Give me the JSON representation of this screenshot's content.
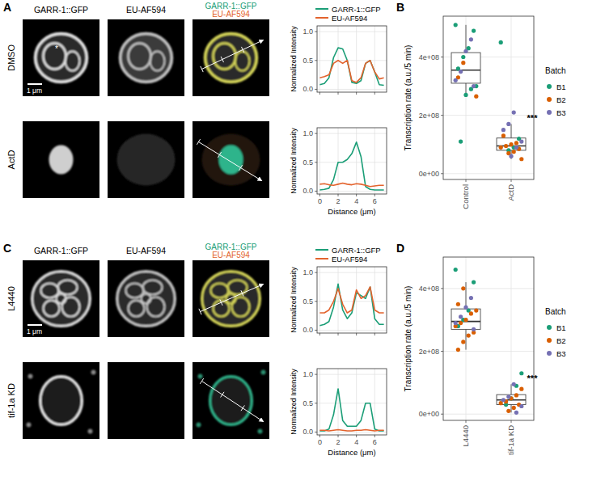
{
  "figure": {
    "panels": [
      "A",
      "B",
      "C",
      "D"
    ],
    "image_panels": [
      {
        "columns": [
          "GARR-1::GFP",
          "EU-AF594"
        ],
        "merge_labels": [
          "GARR-1::GFP",
          "EU-AF594"
        ],
        "rows": [
          "DMSO",
          "ActD"
        ],
        "scale_bar": "1 μm",
        "asterisk": "*"
      },
      {
        "columns": [
          "GARR-1::GFP",
          "EU-AF594"
        ],
        "merge_labels": [
          "GARR-1::GFP",
          "EU-AF594"
        ],
        "rows": [
          "L4440",
          "tif-1a KD"
        ],
        "scale_bar": "1 μm"
      }
    ]
  },
  "chart_data": [
    {
      "type": "line",
      "ylabel": "Normalized Intensity",
      "x": [
        0,
        0.5,
        1,
        1.5,
        2,
        2.5,
        3,
        3.5,
        4,
        4.5,
        5,
        5.5,
        6,
        6.5,
        7
      ],
      "series": [
        {
          "name": "GARR-1::GFP",
          "color": "#1b9e77",
          "values": [
            0.08,
            0.1,
            0.2,
            0.55,
            0.72,
            0.7,
            0.5,
            0.12,
            0.1,
            0.15,
            0.45,
            0.5,
            0.3,
            0.08,
            0.07
          ]
        },
        {
          "name": "EU-AF594",
          "color": "#e3632d",
          "values": [
            0.2,
            0.22,
            0.25,
            0.45,
            0.5,
            0.45,
            0.5,
            0.15,
            0.12,
            0.2,
            0.45,
            0.5,
            0.3,
            0.18,
            0.2
          ]
        }
      ],
      "xlim": [
        -0.3,
        7.3
      ],
      "ylim": [
        -0.05,
        1.1
      ],
      "xticks": [
        0,
        2,
        4,
        6
      ],
      "yticks": [
        {
          "value": 0,
          "label": "0.0"
        },
        {
          "value": 0.5,
          "label": "0.5"
        },
        {
          "value": 1,
          "label": "1.0"
        }
      ],
      "grid": true,
      "legend": "top",
      "tick_labels": "y"
    },
    {
      "type": "line",
      "xlabel": "Distance (μm)",
      "ylabel": "Normalized Intensity",
      "x": [
        0,
        0.5,
        1,
        1.5,
        2,
        2.5,
        3,
        3.5,
        4,
        4.5,
        5,
        5.5,
        6,
        6.5,
        7
      ],
      "series": [
        {
          "name": "GARR-1::GFP",
          "color": "#1b9e77",
          "values": [
            0.02,
            0.03,
            0.05,
            0.2,
            0.5,
            0.5,
            0.55,
            0.65,
            0.85,
            0.6,
            0.08,
            0.03,
            0.02,
            0.02,
            0.02
          ]
        },
        {
          "name": "EU-AF594",
          "color": "#e3632d",
          "values": [
            0.12,
            0.13,
            0.11,
            0.1,
            0.12,
            0.14,
            0.12,
            0.11,
            0.13,
            0.12,
            0.1,
            0.08,
            0.09,
            0.1,
            0.1
          ]
        }
      ],
      "xlim": [
        -0.3,
        7.3
      ],
      "ylim": [
        -0.05,
        1.1
      ],
      "xticks": [
        0,
        2,
        4,
        6
      ],
      "yticks": [
        {
          "value": 0,
          "label": "0.0"
        },
        {
          "value": 0.5,
          "label": "0.5"
        },
        {
          "value": 1,
          "label": "1.0"
        }
      ],
      "grid": true
    },
    {
      "type": "box",
      "ylabel": "Transcription rate (a.u./5 min)",
      "categories": [
        "Control",
        "ActD"
      ],
      "boxes": [
        {
          "min": 265000000,
          "q1": 310000000,
          "median": 355000000,
          "q3": 415000000,
          "max": 510000000
        },
        {
          "min": 50000000,
          "q1": 80000000,
          "median": 95000000,
          "q3": 122000000,
          "max": 170000000
        }
      ],
      "series": [
        {
          "name": "B1",
          "color": "#1b9e77",
          "x": [
            "Control",
            "Control",
            "Control",
            "Control",
            "Control",
            "Control",
            "Control",
            "Control",
            "Control",
            "ActD",
            "ActD",
            "ActD",
            "ActD"
          ],
          "values": [
            510000000,
            490000000,
            430000000,
            400000000,
            360000000,
            300000000,
            290000000,
            270000000,
            110000000,
            450000000,
            120000000,
            90000000,
            80000000
          ]
        },
        {
          "name": "B2",
          "color": "#d95f02",
          "x": [
            "Control",
            "Control",
            "Control",
            "ActD",
            "ActD",
            "ActD",
            "ActD",
            "ActD",
            "ActD",
            "ActD",
            "ActD",
            "ActD"
          ],
          "values": [
            380000000,
            330000000,
            265000000,
            105000000,
            100000000,
            95000000,
            90000000,
            85000000,
            75000000,
            70000000,
            130000000,
            50000000
          ]
        },
        {
          "name": "B3",
          "color": "#7570b3",
          "x": [
            "Control",
            "Control",
            "Control",
            "Control",
            "Control",
            "ActD",
            "ActD",
            "ActD",
            "ActD",
            "ActD",
            "ActD"
          ],
          "values": [
            460000000,
            420000000,
            350000000,
            320000000,
            300000000,
            210000000,
            170000000,
            150000000,
            110000000,
            90000000,
            60000000
          ]
        }
      ],
      "legend_title": "Batch",
      "legend": "right",
      "ylim": [
        -20000000,
        540000000
      ],
      "yticks": [
        {
          "value": 0,
          "label": "0e+00"
        },
        {
          "value": 200000000,
          "label": "2e+08"
        },
        {
          "value": 400000000,
          "label": "4e+08"
        }
      ],
      "grid": true,
      "annotations": [
        {
          "text": "***",
          "category": "ActD"
        }
      ]
    },
    {
      "type": "line",
      "ylabel": "Normalized Intensity",
      "x": [
        0,
        0.5,
        1,
        1.5,
        2,
        2.5,
        3,
        3.5,
        4,
        4.5,
        5,
        5.5,
        6,
        6.5,
        7
      ],
      "series": [
        {
          "name": "GARR-1::GFP",
          "color": "#1b9e77",
          "values": [
            0.08,
            0.1,
            0.15,
            0.4,
            0.8,
            0.35,
            0.2,
            0.3,
            0.65,
            0.6,
            0.55,
            0.75,
            0.2,
            0.1,
            0.1
          ]
        },
        {
          "name": "EU-AF594",
          "color": "#e3632d",
          "values": [
            0.3,
            0.3,
            0.35,
            0.5,
            0.72,
            0.45,
            0.3,
            0.35,
            0.7,
            0.55,
            0.6,
            0.75,
            0.35,
            0.3,
            0.3
          ]
        }
      ],
      "xlim": [
        -0.3,
        7.3
      ],
      "ylim": [
        -0.05,
        1.1
      ],
      "xticks": [
        0,
        2,
        4,
        6
      ],
      "yticks": [
        {
          "value": 0,
          "label": "0.0"
        },
        {
          "value": 0.5,
          "label": "0.5"
        },
        {
          "value": 1,
          "label": "1.0"
        }
      ],
      "grid": true,
      "legend": "top",
      "tick_labels": "y"
    },
    {
      "type": "line",
      "xlabel": "Distance (μm)",
      "ylabel": "Normalized Intensity",
      "x": [
        0,
        0.5,
        1,
        1.5,
        2,
        2.5,
        3,
        3.5,
        4,
        4.5,
        5,
        5.5,
        6,
        6.5,
        7
      ],
      "series": [
        {
          "name": "GARR-1::GFP",
          "color": "#1b9e77",
          "values": [
            0.02,
            0.02,
            0.05,
            0.3,
            0.75,
            0.2,
            0.1,
            0.1,
            0.1,
            0.2,
            0.5,
            0.5,
            0.05,
            0.02,
            0.02
          ]
        },
        {
          "name": "EU-AF594",
          "color": "#e3632d",
          "values": [
            0.03,
            0.03,
            0.02,
            0.03,
            0.04,
            0.03,
            0.02,
            0.02,
            0.03,
            0.03,
            0.04,
            0.03,
            0.02,
            0.03,
            0.03
          ]
        }
      ],
      "xlim": [
        -0.3,
        7.3
      ],
      "ylim": [
        -0.05,
        1.1
      ],
      "xticks": [
        0,
        2,
        4,
        6
      ],
      "yticks": [
        {
          "value": 0,
          "label": "0.0"
        },
        {
          "value": 0.5,
          "label": "0.5"
        },
        {
          "value": 1,
          "label": "1.0"
        }
      ],
      "grid": true
    },
    {
      "type": "box",
      "ylabel": "Transcription rate (a.u./5 min)",
      "categories": [
        "L4440",
        "tif-1a KD"
      ],
      "boxes": [
        {
          "min": 205000000,
          "q1": 270000000,
          "median": 295000000,
          "q3": 335000000,
          "max": 420000000
        },
        {
          "min": 5000000,
          "q1": 30000000,
          "median": 45000000,
          "q3": 62000000,
          "max": 95000000
        }
      ],
      "series": [
        {
          "name": "B1",
          "color": "#1b9e77",
          "x": [
            "L4440",
            "L4440",
            "L4440",
            "L4440",
            "L4440",
            "tif-1a KD",
            "tif-1a KD",
            "tif-1a KD",
            "tif-1a KD"
          ],
          "values": [
            460000000,
            420000000,
            330000000,
            300000000,
            280000000,
            130000000,
            90000000,
            50000000,
            30000000
          ]
        },
        {
          "name": "B2",
          "color": "#d95f02",
          "x": [
            "L4440",
            "L4440",
            "L4440",
            "L4440",
            "L4440",
            "L4440",
            "L4440",
            "L4440",
            "L4440",
            "L4440",
            "L4440",
            "tif-1a KD",
            "tif-1a KD",
            "tif-1a KD",
            "tif-1a KD",
            "tif-1a KD",
            "tif-1a KD",
            "tif-1a KD",
            "tif-1a KD"
          ],
          "values": [
            400000000,
            350000000,
            330000000,
            320000000,
            300000000,
            290000000,
            280000000,
            260000000,
            250000000,
            230000000,
            205000000,
            80000000,
            60000000,
            50000000,
            40000000,
            35000000,
            30000000,
            20000000,
            10000000
          ]
        },
        {
          "name": "B3",
          "color": "#7570b3",
          "x": [
            "L4440",
            "L4440",
            "L4440",
            "L4440",
            "L4440",
            "tif-1a KD",
            "tif-1a KD",
            "tif-1a KD",
            "tif-1a KD",
            "tif-1a KD"
          ],
          "values": [
            370000000,
            340000000,
            310000000,
            290000000,
            270000000,
            95000000,
            55000000,
            45000000,
            25000000,
            5000000
          ]
        }
      ],
      "legend_title": "Batch",
      "legend": "right",
      "ylim": [
        -20000000,
        500000000
      ],
      "yticks": [
        {
          "value": 0,
          "label": "0e+00"
        },
        {
          "value": 200000000,
          "label": "2e+08"
        },
        {
          "value": 400000000,
          "label": "4e+08"
        }
      ],
      "grid": true,
      "annotations": [
        {
          "text": "***",
          "category": "tif-1a KD"
        }
      ]
    }
  ]
}
